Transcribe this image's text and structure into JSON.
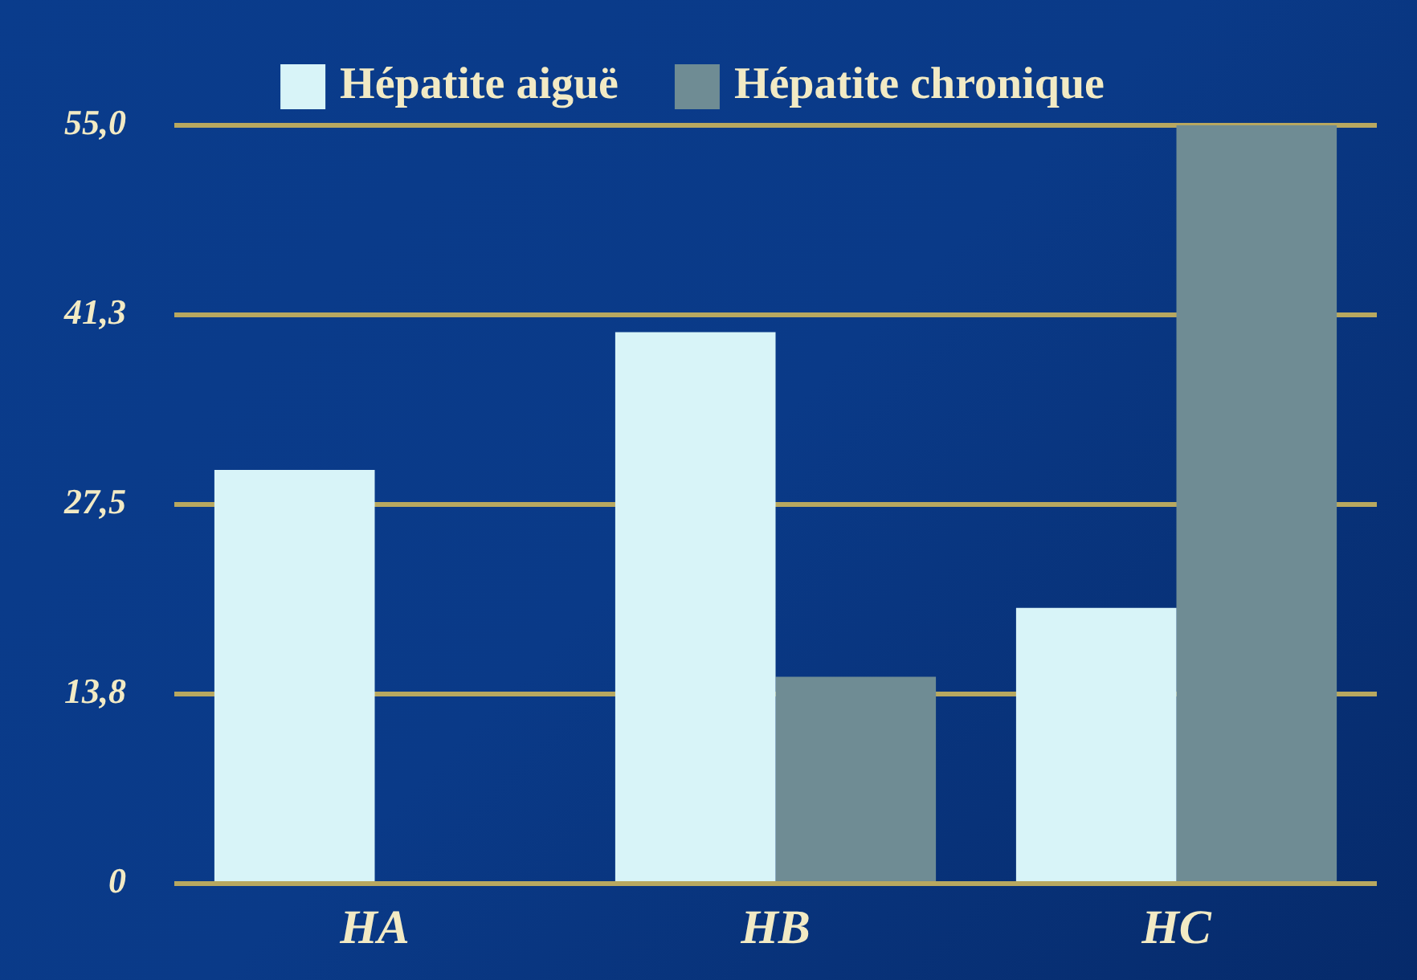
{
  "chart_data": {
    "type": "bar",
    "categories": [
      "HA",
      "HB",
      "HC"
    ],
    "series": [
      {
        "name": "Hépatite aiguë",
        "color": "#d8f4f8",
        "values": [
          30,
          40,
          20
        ]
      },
      {
        "name": "Hépatite chronique",
        "color": "#6f8c94",
        "values": [
          null,
          15,
          55
        ]
      }
    ],
    "ylim": [
      0,
      55
    ],
    "yticks": [
      {
        "value": 0,
        "label": "0"
      },
      {
        "value": 13.75,
        "label": "13,8"
      },
      {
        "value": 27.5,
        "label": "27,5"
      },
      {
        "value": 41.25,
        "label": "41,3"
      },
      {
        "value": 55,
        "label": "55,0"
      }
    ],
    "grid": "y",
    "legend": "top"
  }
}
